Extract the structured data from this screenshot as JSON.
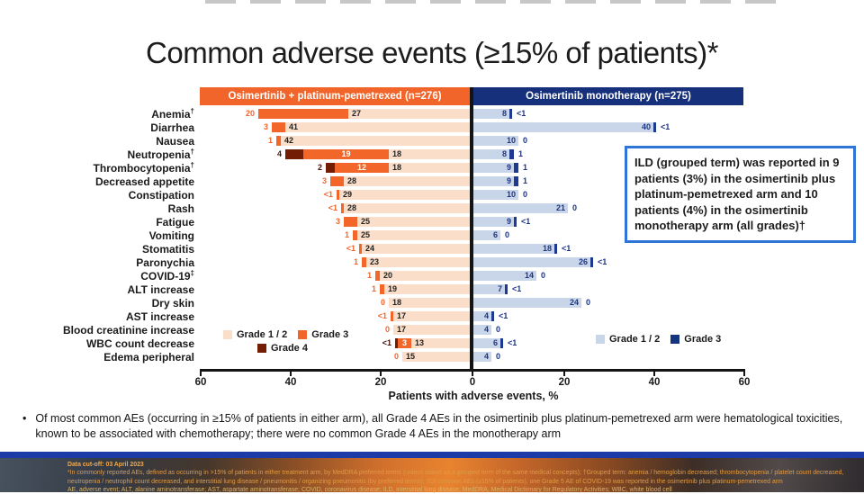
{
  "title": "Common adverse events (≥15% of patients)*",
  "colors": {
    "grade12_left": "#fadec9",
    "grade3_left": "#f2662a",
    "grade4_left": "#731d05",
    "grade12_right": "#c9d5e9",
    "grade3_right": "#1e3a8f",
    "header_left": "#f2652a",
    "header_right": "#16307c",
    "g4_label": "#43130a",
    "right_label": "#1d3584",
    "ild_border": "#2f75d8",
    "footer_bar": "#1c3ba6"
  },
  "chart_data": {
    "type": "bar",
    "layout": "diverging-stacked-butterfly",
    "axis": {
      "label": "Patients with adverse events, %",
      "ticks": [
        "60",
        "40",
        "20",
        "0",
        "20",
        "40",
        "60"
      ],
      "left_range": [
        0,
        60
      ],
      "right_range": [
        0,
        60
      ],
      "grid": false
    },
    "left_arm": {
      "header": "Osimertinib + platinum-pemetrexed (n=276)",
      "legend": [
        "Grade 1 / 2",
        "Grade 3",
        "Grade 4"
      ]
    },
    "right_arm": {
      "header": "Osimertinib monotherapy (n=275)",
      "legend": [
        "Grade 1 / 2",
        "Grade 3"
      ]
    },
    "rows": [
      {
        "category": "Anemia†",
        "left": {
          "g12": "27",
          "g3": "20",
          "g4": null
        },
        "right": {
          "g12": "8",
          "g3": "<1"
        }
      },
      {
        "category": "Diarrhea",
        "left": {
          "g12": "41",
          "g3": "3",
          "g4": null
        },
        "right": {
          "g12": "40",
          "g3": "<1"
        }
      },
      {
        "category": "Nausea",
        "left": {
          "g12": "42",
          "g3": "1",
          "g4": null
        },
        "right": {
          "g12": "10",
          "g3": "0"
        }
      },
      {
        "category": "Neutropenia†",
        "left": {
          "g12": "18",
          "g3": "19",
          "g4": "4"
        },
        "right": {
          "g12": "8",
          "g3": "1"
        }
      },
      {
        "category": "Thrombocytopenia†",
        "left": {
          "g12": "18",
          "g3": "12",
          "g4": "2"
        },
        "right": {
          "g12": "9",
          "g3": "1"
        }
      },
      {
        "category": "Decreased appetite",
        "left": {
          "g12": "28",
          "g3": "3",
          "g4": null
        },
        "right": {
          "g12": "9",
          "g3": "1"
        }
      },
      {
        "category": "Constipation",
        "left": {
          "g12": "29",
          "g3": "<1",
          "g4": null
        },
        "right": {
          "g12": "10",
          "g3": "0"
        }
      },
      {
        "category": "Rash",
        "left": {
          "g12": "28",
          "g3": "<1",
          "g4": null
        },
        "right": {
          "g12": "21",
          "g3": "0"
        }
      },
      {
        "category": "Fatigue",
        "left": {
          "g12": "25",
          "g3": "3",
          "g4": null
        },
        "right": {
          "g12": "9",
          "g3": "<1"
        }
      },
      {
        "category": "Vomiting",
        "left": {
          "g12": "25",
          "g3": "1",
          "g4": null
        },
        "right": {
          "g12": "6",
          "g3": "0"
        }
      },
      {
        "category": "Stomatitis",
        "left": {
          "g12": "24",
          "g3": "<1",
          "g4": null
        },
        "right": {
          "g12": "18",
          "g3": "<1"
        }
      },
      {
        "category": "Paronychia",
        "left": {
          "g12": "23",
          "g3": "1",
          "g4": null
        },
        "right": {
          "g12": "26",
          "g3": "<1"
        }
      },
      {
        "category": "COVID-19‡",
        "left": {
          "g12": "20",
          "g3": "1",
          "g4": null
        },
        "right": {
          "g12": "14",
          "g3": "0"
        }
      },
      {
        "category": "ALT increase",
        "left": {
          "g12": "19",
          "g3": "1",
          "g4": null
        },
        "right": {
          "g12": "7",
          "g3": "<1"
        }
      },
      {
        "category": "Dry skin",
        "left": {
          "g12": "18",
          "g3": "0",
          "g4": null
        },
        "right": {
          "g12": "24",
          "g3": "0"
        }
      },
      {
        "category": "AST increase",
        "left": {
          "g12": "17",
          "g3": "<1",
          "g4": null
        },
        "right": {
          "g12": "4",
          "g3": "<1"
        }
      },
      {
        "category": "Blood creatinine increase",
        "left": {
          "g12": "17",
          "g3": "0",
          "g4": null
        },
        "right": {
          "g12": "4",
          "g3": "0"
        }
      },
      {
        "category": "WBC count decrease",
        "left": {
          "g12": "13",
          "g3": "3",
          "g4": "<1"
        },
        "right": {
          "g12": "6",
          "g3": "<1"
        }
      },
      {
        "category": "Edema peripheral",
        "left": {
          "g12": "15",
          "g3": "0",
          "g4": null
        },
        "right": {
          "g12": "4",
          "g3": "0"
        }
      }
    ]
  },
  "ild_box": {
    "text": "ILD (grouped term) was reported in 9 patients (3%) in the osimertinib plus platinum-pemetrexed arm and 10 patients (4%) in the osimertinib monotherapy arm (all grades)†"
  },
  "bullet": {
    "marker": "•",
    "text": "Of most common AEs (occurring in ≥15% of patients in either arm), all Grade 4 AEs in the osimertinib plus platinum-pemetrexed arm were hematological toxicities, known to be associated with chemotherapy; there were no common Grade 4 AEs in the monotherapy arm"
  },
  "footer": {
    "lines": [
      "Data cut-off: 03 April 2023",
      "*In commonly reported AEs, defined as occurring in >15% of patients in either treatment arm, by MedDRA preferred terms (unless stated as a grouped term of the same medical concepts); †Grouped term: anemia / hemoglobin decreased; thrombocytopenia / platelet count decreased,",
      "neutropenia / neutrophil count decreased, and interstitial lung disease / pneumonitis / organizing pneumonitis (by preferred terms); ‡Of common AEs (≥15% of patients), one Grade 5 AE of COVID-19 was reported in the osimertinib plus platinum-pemetrexed arm",
      "AE, adverse event; ALT, alanine aminotransferase; AST, aspartate aminotransferase; COVID, coronavirus disease; ILD, interstitial lung disease; MedDRA, Medical Dictionary for Regulatory Activities; WBC, white blood cell"
    ]
  }
}
